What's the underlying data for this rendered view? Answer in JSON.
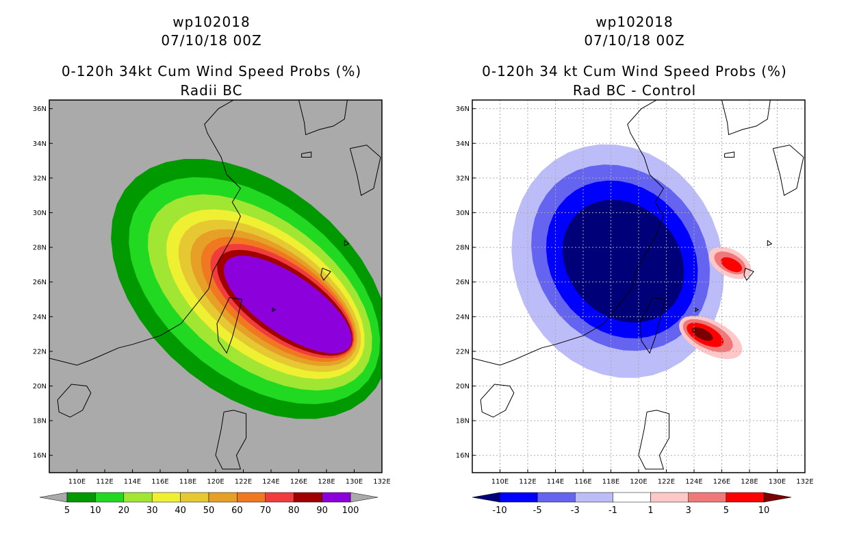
{
  "chart_data": [
    {
      "type": "heatmap",
      "panel": "left",
      "title_lines": [
        "wp102018",
        "07/10/18 00Z",
        "0-120h 34kt Cum Wind Speed Probs (%)",
        "Radii BC"
      ],
      "lon_range": [
        108,
        132
      ],
      "lat_range": [
        15,
        36.5
      ],
      "x_ticks": [
        "110E",
        "112E",
        "114E",
        "116E",
        "118E",
        "120E",
        "122E",
        "124E",
        "126E",
        "128E",
        "130E",
        "132E"
      ],
      "y_ticks": [
        "16N",
        "18N",
        "20N",
        "22N",
        "24N",
        "26N",
        "28N",
        "30N",
        "32N",
        "34N",
        "36N"
      ],
      "background_color": "#aaaaaa",
      "colorbar": {
        "labels": [
          "5",
          "10",
          "20",
          "30",
          "40",
          "50",
          "60",
          "70",
          "80",
          "90",
          "100"
        ],
        "colors": [
          "#009900",
          "#22d922",
          "#a0e632",
          "#f0f032",
          "#e6c832",
          "#e6a028",
          "#f07820",
          "#f03c3c",
          "#a00000",
          "#8c00dc"
        ],
        "under_color": "#aaaaaa",
        "over_color": "#aaaaaa"
      }
    },
    {
      "type": "heatmap",
      "panel": "right",
      "title_lines": [
        "wp102018",
        "07/10/18 00Z",
        "0-120h 34 kt Cum Wind Speed Probs (%)",
        "Rad BC - Control"
      ],
      "lon_range": [
        108,
        132
      ],
      "lat_range": [
        15,
        36.5
      ],
      "x_ticks": [
        "110E",
        "112E",
        "114E",
        "116E",
        "118E",
        "120E",
        "122E",
        "124E",
        "126E",
        "128E",
        "130E",
        "132E"
      ],
      "y_ticks": [
        "16N",
        "18N",
        "20N",
        "22N",
        "24N",
        "26N",
        "28N",
        "30N",
        "32N",
        "34N",
        "36N"
      ],
      "background_color": "#ffffff",
      "colorbar": {
        "labels": [
          "-10",
          "-5",
          "-3",
          "-1",
          "1",
          "3",
          "5",
          "10"
        ],
        "colors": [
          "#0000ff",
          "#6464f0",
          "#bcbcf8",
          "#ffffff",
          "#ffc8c8",
          "#f07878",
          "#ff0000"
        ],
        "under_color": "#000078",
        "over_color": "#780000"
      }
    }
  ]
}
